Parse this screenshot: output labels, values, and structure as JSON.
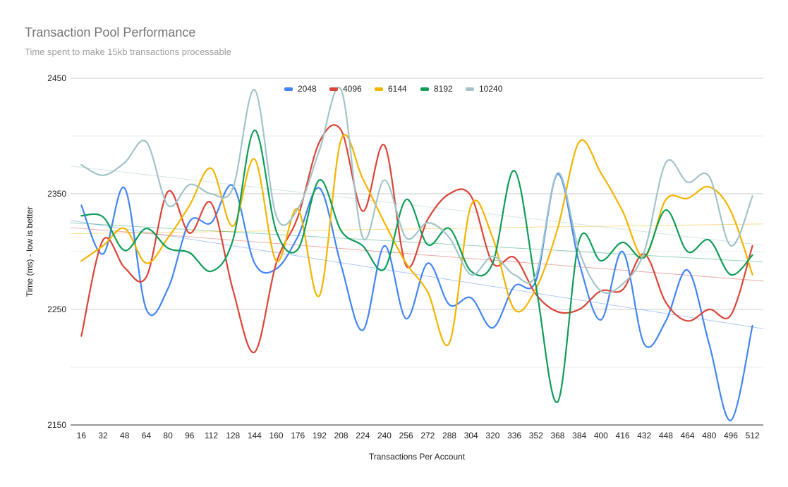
{
  "chart_data": {
    "type": "line",
    "title": "Transaction Pool Performance",
    "subtitle": "Time spent to make 15kb transactions processable",
    "xlabel": "Transactions Per Account",
    "ylabel": "Time (ms) - low is better",
    "ylim": [
      2150,
      2450
    ],
    "yticks": [
      2150,
      2250,
      2350,
      2450
    ],
    "grid": true,
    "legend_position": "top",
    "trendlines": true,
    "categories": [
      16,
      32,
      48,
      64,
      80,
      96,
      112,
      128,
      144,
      160,
      176,
      192,
      208,
      224,
      240,
      256,
      272,
      288,
      304,
      320,
      336,
      352,
      368,
      384,
      400,
      416,
      432,
      448,
      464,
      480,
      496,
      512
    ],
    "series": [
      {
        "name": "2048",
        "color": "#4285f4",
        "values": [
          2340,
          2298,
          2355,
          2250,
          2268,
          2326,
          2325,
          2357,
          2290,
          2285,
          2313,
          2355,
          2288,
          2232,
          2305,
          2242,
          2290,
          2254,
          2260,
          2234,
          2270,
          2275,
          2367,
          2290,
          2241,
          2300,
          2220,
          2240,
          2284,
          2220,
          2154,
          2236
        ]
      },
      {
        "name": "4096",
        "color": "#db4437",
        "values": [
          2227,
          2310,
          2286,
          2278,
          2352,
          2316,
          2342,
          2267,
          2213,
          2290,
          2330,
          2395,
          2405,
          2335,
          2392,
          2288,
          2328,
          2350,
          2348,
          2290,
          2295,
          2263,
          2248,
          2250,
          2266,
          2267,
          2298,
          2256,
          2240,
          2250,
          2245,
          2305
        ]
      },
      {
        "name": "6144",
        "color": "#f4b400",
        "values": [
          2292,
          2305,
          2320,
          2290,
          2312,
          2340,
          2372,
          2322,
          2380,
          2292,
          2337,
          2262,
          2397,
          2363,
          2325,
          2290,
          2265,
          2221,
          2340,
          2312,
          2250,
          2268,
          2320,
          2395,
          2368,
          2335,
          2295,
          2345,
          2346,
          2356,
          2335,
          2280
        ]
      },
      {
        "name": "8192",
        "color": "#0f9d58",
        "values": [
          2331,
          2330,
          2301,
          2320,
          2303,
          2299,
          2283,
          2310,
          2405,
          2318,
          2302,
          2362,
          2318,
          2305,
          2285,
          2345,
          2306,
          2320,
          2283,
          2290,
          2370,
          2270,
          2170,
          2310,
          2292,
          2308,
          2295,
          2336,
          2300,
          2310,
          2280,
          2297
        ]
      },
      {
        "name": "10240",
        "color": "#a2c4c9",
        "values": [
          2375,
          2366,
          2377,
          2395,
          2340,
          2358,
          2350,
          2355,
          2440,
          2331,
          2337,
          2388,
          2440,
          2312,
          2362,
          2312,
          2325,
          2312,
          2280,
          2296,
          2280,
          2280,
          2368,
          2300,
          2266,
          2272,
          2300,
          2377,
          2360,
          2365,
          2305,
          2348
        ]
      }
    ]
  }
}
